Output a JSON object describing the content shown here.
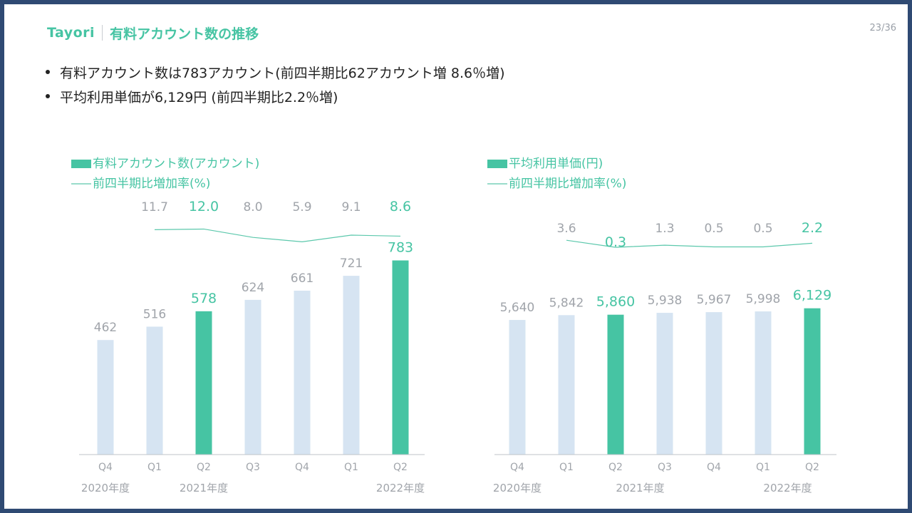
{
  "header": {
    "brand": "Tayori",
    "title": "有料アカウント数の推移",
    "page": "23/36"
  },
  "bullets": [
    "有料アカウント数は783アカウント(前四半期比62アカウント増 8.6％増)",
    "平均利用単価が6,129円 (前四半期比2.2％増)"
  ],
  "colors": {
    "highlight": "#46c4a3",
    "muted_bar": "#d6e4f2",
    "line": "#5cc8ac",
    "label": "#a0a4aa"
  },
  "chart_data": [
    {
      "type": "bar",
      "title": "",
      "legend": {
        "bar": "有料アカウント数(アカウント)",
        "line": "前四半期比増加率(%)"
      },
      "categories": [
        "Q4",
        "Q1",
        "Q2",
        "Q3",
        "Q4",
        "Q1",
        "Q2"
      ],
      "fiscal_years": [
        {
          "label": "2020年度",
          "index": 0
        },
        {
          "label": "2021年度",
          "index": 2
        },
        {
          "label": "2022年度",
          "index": 6
        }
      ],
      "values": [
        462,
        516,
        578,
        624,
        661,
        721,
        783
      ],
      "value_labels": [
        "462",
        "516",
        "578",
        "624",
        "661",
        "721",
        "783"
      ],
      "highlight": [
        false,
        false,
        true,
        false,
        false,
        false,
        true
      ],
      "line": {
        "values": [
          11.7,
          12.0,
          8.0,
          5.9,
          9.1,
          8.6
        ],
        "labels": [
          "11.7",
          "12.0",
          "8.0",
          "5.9",
          "9.1",
          "8.6"
        ],
        "start_index": 1,
        "highlight": [
          false,
          true,
          false,
          false,
          false,
          true
        ]
      }
    },
    {
      "type": "bar",
      "title": "",
      "legend": {
        "bar": "平均利用単価(円)",
        "line": "前四半期比増加率(%)"
      },
      "categories": [
        "Q4",
        "Q1",
        "Q2",
        "Q3",
        "Q4",
        "Q1",
        "Q2"
      ],
      "fiscal_years": [
        {
          "label": "2020年度",
          "index": 0
        },
        {
          "label": "2021年度",
          "index": 2.5
        },
        {
          "label": "2022年度",
          "index": 5.5
        }
      ],
      "values": [
        5640,
        5842,
        5860,
        5938,
        5967,
        5998,
        6129
      ],
      "value_labels": [
        "5,640",
        "5,842",
        "5,860",
        "5,938",
        "5,967",
        "5,998",
        "6,129"
      ],
      "highlight": [
        false,
        false,
        true,
        false,
        false,
        false,
        true
      ],
      "line": {
        "values": [
          3.6,
          0.3,
          1.3,
          0.5,
          0.5,
          2.2
        ],
        "labels": [
          "3.6",
          "0.3",
          "1.3",
          "0.5",
          "0.5",
          "2.2"
        ],
        "start_index": 1,
        "highlight": [
          false,
          true,
          false,
          false,
          false,
          true
        ]
      }
    }
  ]
}
